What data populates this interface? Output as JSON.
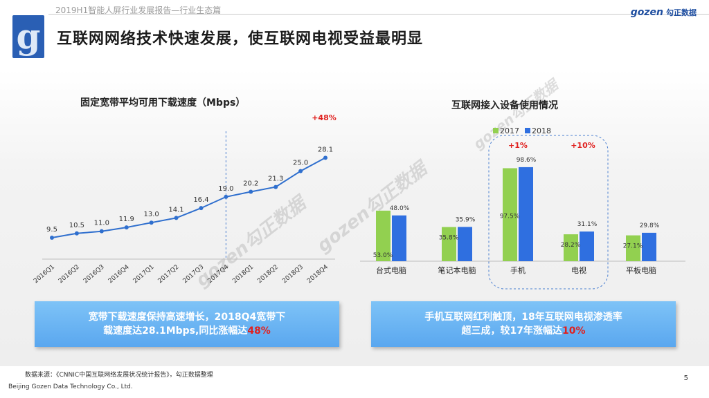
{
  "header": {
    "report_title": "2019H1智能人屏行业发展报告—行业生态篇",
    "brand_name": "gozen",
    "brand_cn": "勾正数据",
    "logo_letter": "g"
  },
  "main_title": "互联网网络技术快速发展，使互联网电视受益最明显",
  "watermark_text": "gozen勾正数据",
  "chart_data": [
    {
      "type": "line",
      "title": "固定宽带平均可用下载速度（Mbps）",
      "categories": [
        "2016Q1",
        "2016Q2",
        "2016Q3",
        "2016Q4",
        "2017Q1",
        "2017Q2",
        "2017Q3",
        "2017Q4",
        "2018Q1",
        "2018Q2",
        "2018Q3",
        "2018Q4"
      ],
      "values": [
        9.5,
        10.5,
        11.0,
        11.9,
        13.0,
        14.1,
        16.4,
        19.0,
        20.2,
        21.3,
        25.0,
        28.1
      ],
      "value_labels": [
        "9.5",
        "10.5",
        "11.0",
        "11.9",
        "13.0",
        "14.1",
        "16.4",
        "19.0",
        "20.2",
        "21.3",
        "25.0",
        "28.1"
      ],
      "annotation": "+48%",
      "divider_after": "2017Q4",
      "color": "#2f6fce"
    },
    {
      "type": "bar",
      "title": "互联网接入设备使用情况",
      "categories": [
        "台式电脑",
        "笔记本电脑",
        "手机",
        "电视",
        "平板电脑"
      ],
      "series": [
        {
          "name": "2017",
          "values": [
            53.0,
            35.8,
            97.5,
            28.2,
            27.1
          ],
          "labels": [
            "53.0%",
            "35.8%",
            "97.5%",
            "28.2%",
            "27.1%"
          ],
          "color": "#92d050"
        },
        {
          "name": "2018",
          "values": [
            48.0,
            35.9,
            98.6,
            31.1,
            29.8
          ],
          "labels": [
            "48.0%",
            "35.9%",
            "98.6%",
            "31.1%",
            "29.8%"
          ],
          "color": "#2f6fe0"
        }
      ],
      "annotations": [
        "+1%",
        "+10%"
      ],
      "highlight_categories": [
        "手机",
        "电视"
      ],
      "legend_position": "top",
      "ylim": [
        0,
        100
      ]
    }
  ],
  "callouts": {
    "left": {
      "line1": "宽带下载速度保持高速增长，2018Q4宽带下",
      "line2_pre": "载速度达28.1Mbps,同比涨幅达",
      "line2_hl": "48%"
    },
    "right": {
      "line1": "手机互联网红利触顶，18年互联网电视渗透率",
      "line2_pre": "超三成，较17年涨幅达",
      "line2_hl": "10%"
    }
  },
  "footer": {
    "source": "数据来源：《CNNIC中国互联网络发展状况统计报告》，勾正数据整理",
    "company": "Beijing Gozen Data Technology Co., Ltd.",
    "page": "5"
  },
  "colors": {
    "accent_blue": "#2a5fb4",
    "highlight_red": "#e0201e",
    "callout_blue": "#6bb4f3"
  }
}
